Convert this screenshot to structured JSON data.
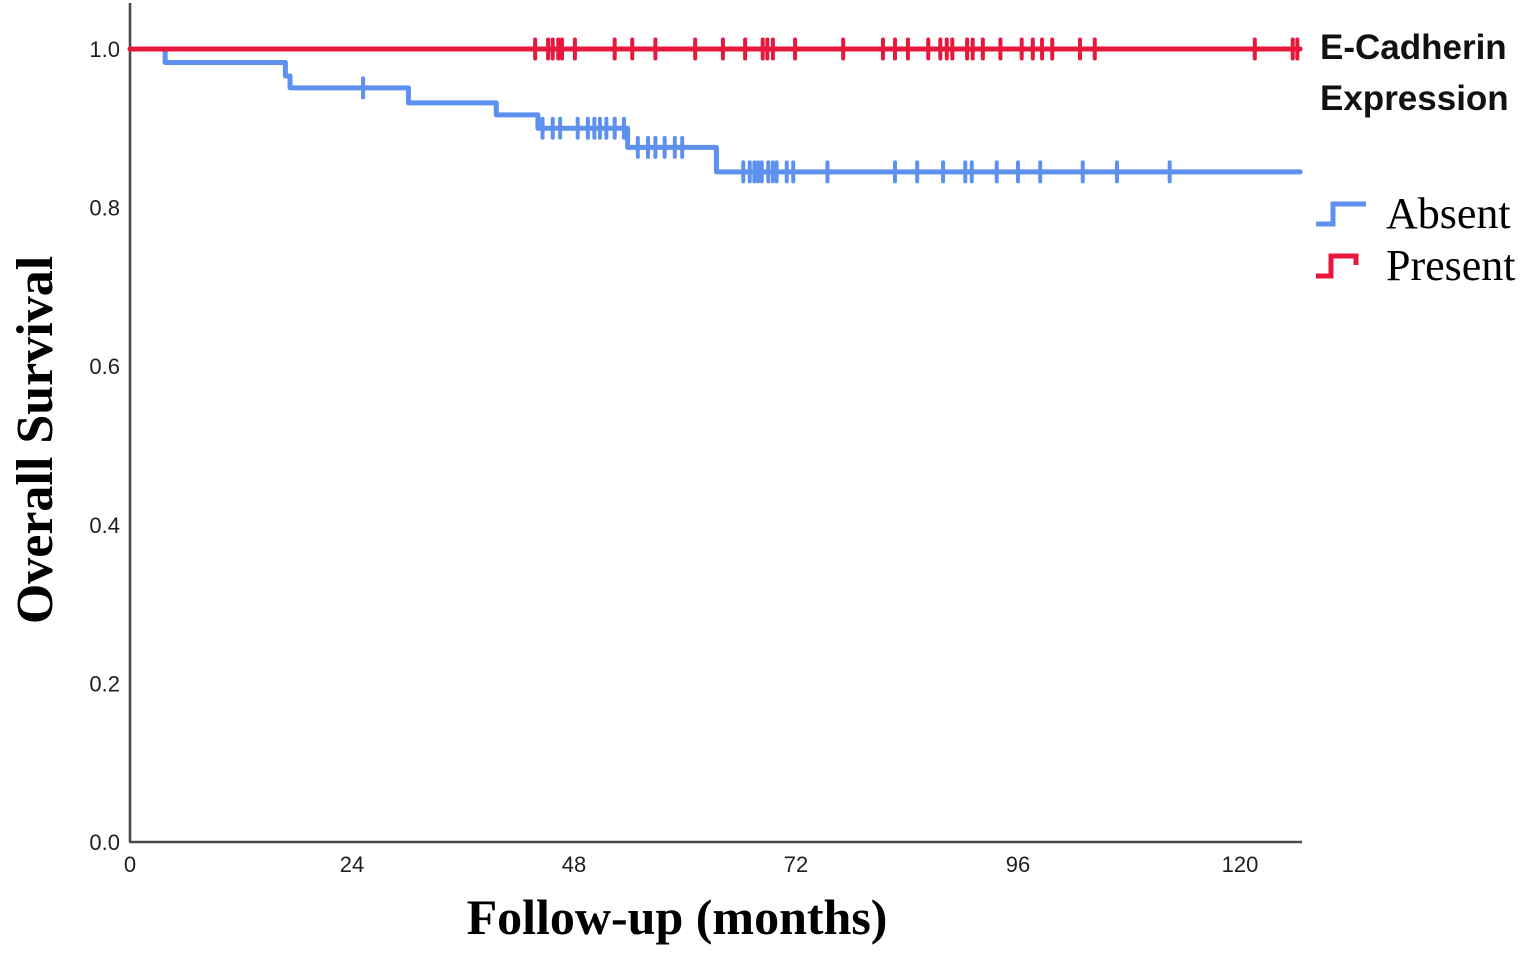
{
  "chart_data": {
    "type": "line",
    "subtype": "kaplan-meier-step",
    "title": "",
    "xlabel": "Follow-up (months)",
    "ylabel": "Overall Survival",
    "xlim": [
      0,
      126.5
    ],
    "ylim": [
      0,
      1.05
    ],
    "grid": false,
    "xticks": {
      "values": [
        0,
        24,
        48,
        72,
        96,
        120
      ],
      "labels": [
        "0",
        "24",
        "48",
        "72",
        "96",
        "120"
      ]
    },
    "yticks": {
      "values": [
        0.0,
        0.2,
        0.4,
        0.6,
        0.8,
        1.0
      ],
      "labels": [
        "0.0",
        "0.2",
        "0.4",
        "0.6",
        "0.8",
        "1.0"
      ]
    },
    "axis_color": "#4b4b4b",
    "tick_color": "#1f1f1f",
    "legend": {
      "position": "right",
      "title_lines": [
        "E-Cadherin",
        "Expression"
      ],
      "items": [
        {
          "label": "Absent",
          "color": "#5E90F0"
        },
        {
          "label": "Present",
          "color": "#E8173C"
        }
      ]
    },
    "series": [
      {
        "name": "Absent",
        "color": "#5E90F0",
        "steps": [
          [
            0,
            1.0
          ],
          [
            3.8,
            0.983
          ],
          [
            16.8,
            0.966
          ],
          [
            17.3,
            0.951
          ],
          [
            30.1,
            0.932
          ],
          [
            39.6,
            0.917
          ],
          [
            44.1,
            0.9
          ],
          [
            53.8,
            0.876
          ],
          [
            63.4,
            0.845
          ]
        ],
        "end_month": 126.5,
        "censor_months": [
          25.2,
          44.6,
          45.7,
          46.5,
          48.4,
          49.5,
          50.2,
          50.8,
          51.5,
          52.4,
          53.4,
          54.9,
          56.0,
          56.8,
          57.8,
          58.9,
          59.7,
          66.3,
          67.0,
          67.5,
          67.9,
          68.3,
          69.0,
          69.5,
          69.9,
          71.0,
          71.7,
          75.4,
          82.7,
          85.1,
          87.9,
          90.3,
          91.0,
          93.7,
          96.0,
          98.4,
          103.0,
          106.7,
          112.4
        ]
      },
      {
        "name": "Present",
        "color": "#E8173C",
        "steps": [
          [
            0,
            1.0
          ]
        ],
        "end_month": 126.5,
        "censor_months": [
          43.8,
          45.2,
          45.7,
          46.3,
          46.7,
          48.1,
          52.4,
          54.3,
          56.8,
          61.1,
          64.1,
          66.5,
          68.4,
          68.9,
          69.5,
          71.9,
          77.1,
          81.4,
          82.7,
          84.1,
          86.3,
          87.6,
          88.3,
          88.9,
          90.5,
          91.1,
          92.2,
          94.1,
          96.4,
          97.6,
          98.6,
          99.7,
          102.7,
          104.3,
          121.6,
          125.7,
          126.2
        ]
      }
    ]
  }
}
